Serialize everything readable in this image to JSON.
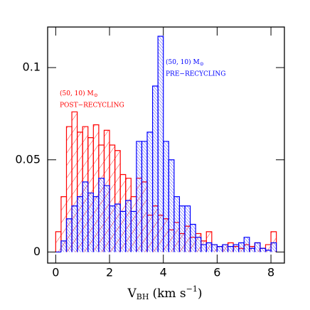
{
  "chart_data": {
    "type": "histogram",
    "bins": [
      0,
      0.2,
      0.4,
      0.6,
      0.8,
      1.0,
      1.2,
      1.4,
      1.6,
      1.8,
      2.0,
      2.2,
      2.4,
      2.6,
      2.8,
      3.0,
      3.2,
      3.4,
      3.6,
      3.8,
      4.0,
      4.2,
      4.4,
      4.6,
      4.8,
      5.0,
      5.2,
      5.4,
      5.6,
      5.8,
      6.0,
      6.2,
      6.4,
      6.6,
      6.8,
      7.0,
      7.2,
      7.4,
      7.6,
      7.8,
      8.0,
      8.2
    ],
    "series": [
      {
        "name": "POST−RECYCLING",
        "mass": "(50, 10) M",
        "color": "#ff0000",
        "values": [
          0.011,
          0.03,
          0.068,
          0.076,
          0.065,
          0.068,
          0.062,
          0.069,
          0.058,
          0.066,
          0.058,
          0.055,
          0.042,
          0.04,
          0.03,
          0.04,
          0.038,
          0.02,
          0.025,
          0.02,
          0.018,
          0.012,
          0.016,
          0.01,
          0.014,
          0.008,
          0.01,
          0.006,
          0.011,
          0.004,
          0.003,
          0.004,
          0.005,
          0.003,
          0.002,
          0.004,
          0.003,
          0.005,
          0.002,
          0.004,
          0.011
        ]
      },
      {
        "name": "PRE−RECYCLING",
        "mass": "(50, 10) M",
        "color": "#0000ff",
        "values": [
          0.0,
          0.006,
          0.018,
          0.025,
          0.03,
          0.038,
          0.032,
          0.03,
          0.04,
          0.036,
          0.025,
          0.026,
          0.022,
          0.028,
          0.022,
          0.06,
          0.06,
          0.065,
          0.09,
          0.117,
          0.06,
          0.05,
          0.03,
          0.025,
          0.025,
          0.015,
          0.008,
          0.004,
          0.005,
          0.004,
          0.003,
          0.004,
          0.003,
          0.004,
          0.005,
          0.008,
          0.002,
          0.005,
          0.002,
          0.001,
          0.005
        ]
      }
    ],
    "mass_sub": "⊙",
    "x_label": {
      "main": "V",
      "sub": "BH",
      "unit": "(km s",
      "sup": "−1",
      "close": ")"
    },
    "xlim": [
      -0.3,
      8.5
    ],
    "xticks": [
      0,
      2,
      4,
      6,
      8
    ],
    "ylim": [
      -0.006,
      0.122
    ],
    "yticks": [
      0,
      0.05,
      0.1
    ]
  }
}
